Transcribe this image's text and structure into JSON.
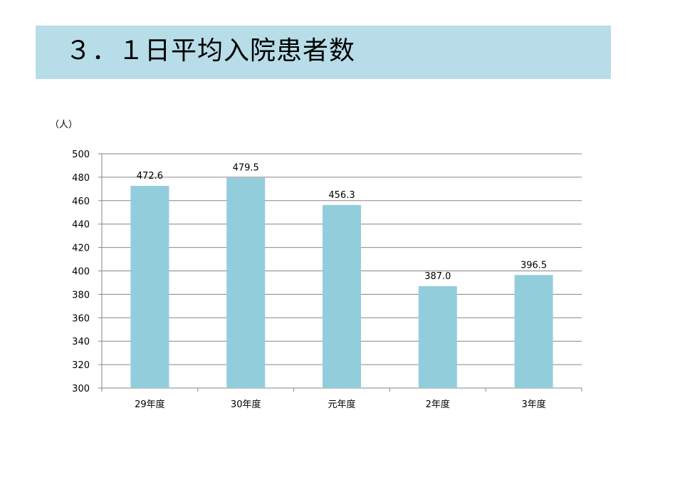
{
  "page": {
    "title": "３．１日平均入院患者数",
    "unit_label": "（人）"
  },
  "colors": {
    "banner": "#b7dde8",
    "bar": "#92cddc",
    "grid": "#868686"
  },
  "chart_data": {
    "type": "bar",
    "title": "",
    "xlabel": "",
    "ylabel": "（人）",
    "categories": [
      "29年度",
      "30年度",
      "元年度",
      "2年度",
      "3年度"
    ],
    "values": [
      472.6,
      479.5,
      456.3,
      387.0,
      396.5
    ],
    "value_labels": [
      "472.6",
      "479.5",
      "456.3",
      "387.0",
      "396.5"
    ],
    "ylim": [
      300,
      500
    ],
    "yticks": [
      300,
      320,
      340,
      360,
      380,
      400,
      420,
      440,
      460,
      480,
      500
    ],
    "grid": true,
    "legend": "none"
  }
}
